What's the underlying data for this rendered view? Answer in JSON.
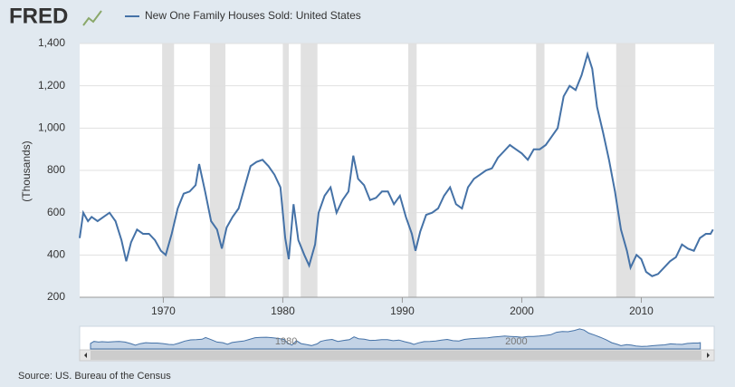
{
  "logo": "FRED",
  "source": "Source: US. Bureau of the Census",
  "chart_data": {
    "type": "line",
    "ylabel": "(Thousands)",
    "series": [
      {
        "name": "New One Family Houses Sold: United States",
        "color": "#4572a7",
        "x": [
          1963.0,
          1963.3,
          1963.7,
          1964.0,
          1964.5,
          1965.0,
          1965.5,
          1966.0,
          1966.5,
          1966.9,
          1967.3,
          1967.8,
          1968.3,
          1968.8,
          1969.3,
          1969.8,
          1970.2,
          1970.7,
          1971.2,
          1971.7,
          1972.2,
          1972.7,
          1973.0,
          1973.5,
          1974.0,
          1974.5,
          1974.9,
          1975.3,
          1975.8,
          1976.3,
          1976.8,
          1977.3,
          1977.8,
          1978.3,
          1978.8,
          1979.3,
          1979.8,
          1980.2,
          1980.5,
          1980.9,
          1981.3,
          1981.8,
          1982.2,
          1982.7,
          1983.0,
          1983.5,
          1984.0,
          1984.5,
          1985.0,
          1985.5,
          1985.9,
          1986.3,
          1986.8,
          1987.3,
          1987.8,
          1988.3,
          1988.8,
          1989.3,
          1989.8,
          1990.3,
          1990.8,
          1991.1,
          1991.5,
          1992.0,
          1992.5,
          1993.0,
          1993.5,
          1994.0,
          1994.5,
          1995.0,
          1995.5,
          1996.0,
          1996.5,
          1997.0,
          1997.5,
          1998.0,
          1998.5,
          1999.0,
          1999.5,
          2000.0,
          2000.5,
          2001.0,
          2001.5,
          2002.0,
          2002.5,
          2003.0,
          2003.5,
          2004.0,
          2004.5,
          2005.0,
          2005.5,
          2005.9,
          2006.3,
          2006.8,
          2007.3,
          2007.8,
          2008.3,
          2008.8,
          2009.1,
          2009.6,
          2010.0,
          2010.4,
          2010.9,
          2011.4,
          2011.9,
          2012.4,
          2012.9,
          2013.4,
          2013.9,
          2014.4,
          2014.9,
          2015.4,
          2015.8,
          2016.0
        ],
        "values": [
          480,
          600,
          560,
          580,
          560,
          580,
          600,
          560,
          470,
          370,
          460,
          520,
          500,
          500,
          470,
          420,
          400,
          500,
          620,
          690,
          700,
          730,
          830,
          700,
          560,
          520,
          430,
          530,
          580,
          620,
          720,
          820,
          840,
          850,
          820,
          780,
          720,
          480,
          380,
          640,
          470,
          400,
          350,
          450,
          600,
          680,
          720,
          600,
          660,
          700,
          870,
          760,
          730,
          660,
          670,
          700,
          700,
          640,
          680,
          580,
          500,
          420,
          510,
          590,
          600,
          620,
          680,
          720,
          640,
          620,
          720,
          760,
          780,
          800,
          810,
          860,
          890,
          920,
          900,
          880,
          850,
          900,
          900,
          920,
          960,
          1000,
          1150,
          1200,
          1180,
          1250,
          1350,
          1280,
          1100,
          980,
          850,
          700,
          520,
          420,
          340,
          400,
          380,
          320,
          300,
          310,
          340,
          370,
          390,
          450,
          430,
          420,
          480,
          500,
          500,
          520
        ]
      }
    ],
    "recessions": [
      [
        1969.9,
        1970.9
      ],
      [
        1973.9,
        1975.2
      ],
      [
        1980.0,
        1980.5
      ],
      [
        1981.5,
        1982.9
      ],
      [
        1990.5,
        1991.2
      ],
      [
        2001.2,
        2001.9
      ],
      [
        2007.9,
        2009.5
      ]
    ],
    "xlim": [
      1963.0,
      2016.1
    ],
    "xticks": [
      1970,
      1980,
      1990,
      2000,
      2010
    ],
    "ylim": [
      200,
      1400
    ],
    "yticks": [
      200,
      400,
      600,
      800,
      {
        "value": 1000,
        "label": "1,000"
      },
      {
        "value": 1200,
        "label": "1,200"
      },
      {
        "value": 1400,
        "label": "1,400"
      }
    ],
    "grid": true,
    "navigator_labels": [
      1980,
      2000
    ]
  }
}
